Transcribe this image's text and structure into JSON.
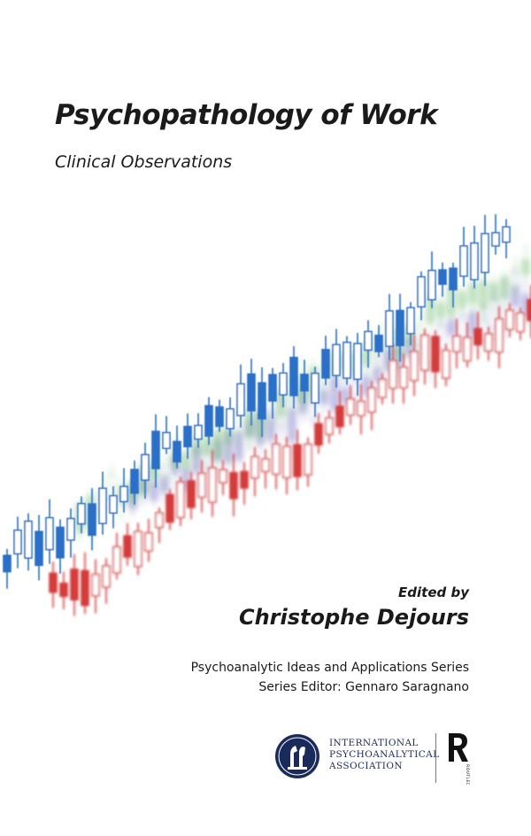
{
  "cover": {
    "title": "Psychopathology of Work",
    "subtitle": "Clinical Observations",
    "edited_by": "Edited by",
    "editor": "Christophe Dejours",
    "series": "Psychoanalytic Ideas and Applications Series",
    "series_editor": "Series Editor: Gennaro Saragnano",
    "ipa_lines": [
      "International",
      "Psychoanalytical",
      "Association"
    ],
    "publisher_logo_text": "ROUTLEDGE",
    "artwork_icon": "candlestick-chart-graphic",
    "colors": {
      "blue": "#2a6fc9",
      "red": "#d43a3a",
      "green": "#7cc27c",
      "violet": "#8a86cf",
      "navy": "#1a2a5a"
    }
  }
}
